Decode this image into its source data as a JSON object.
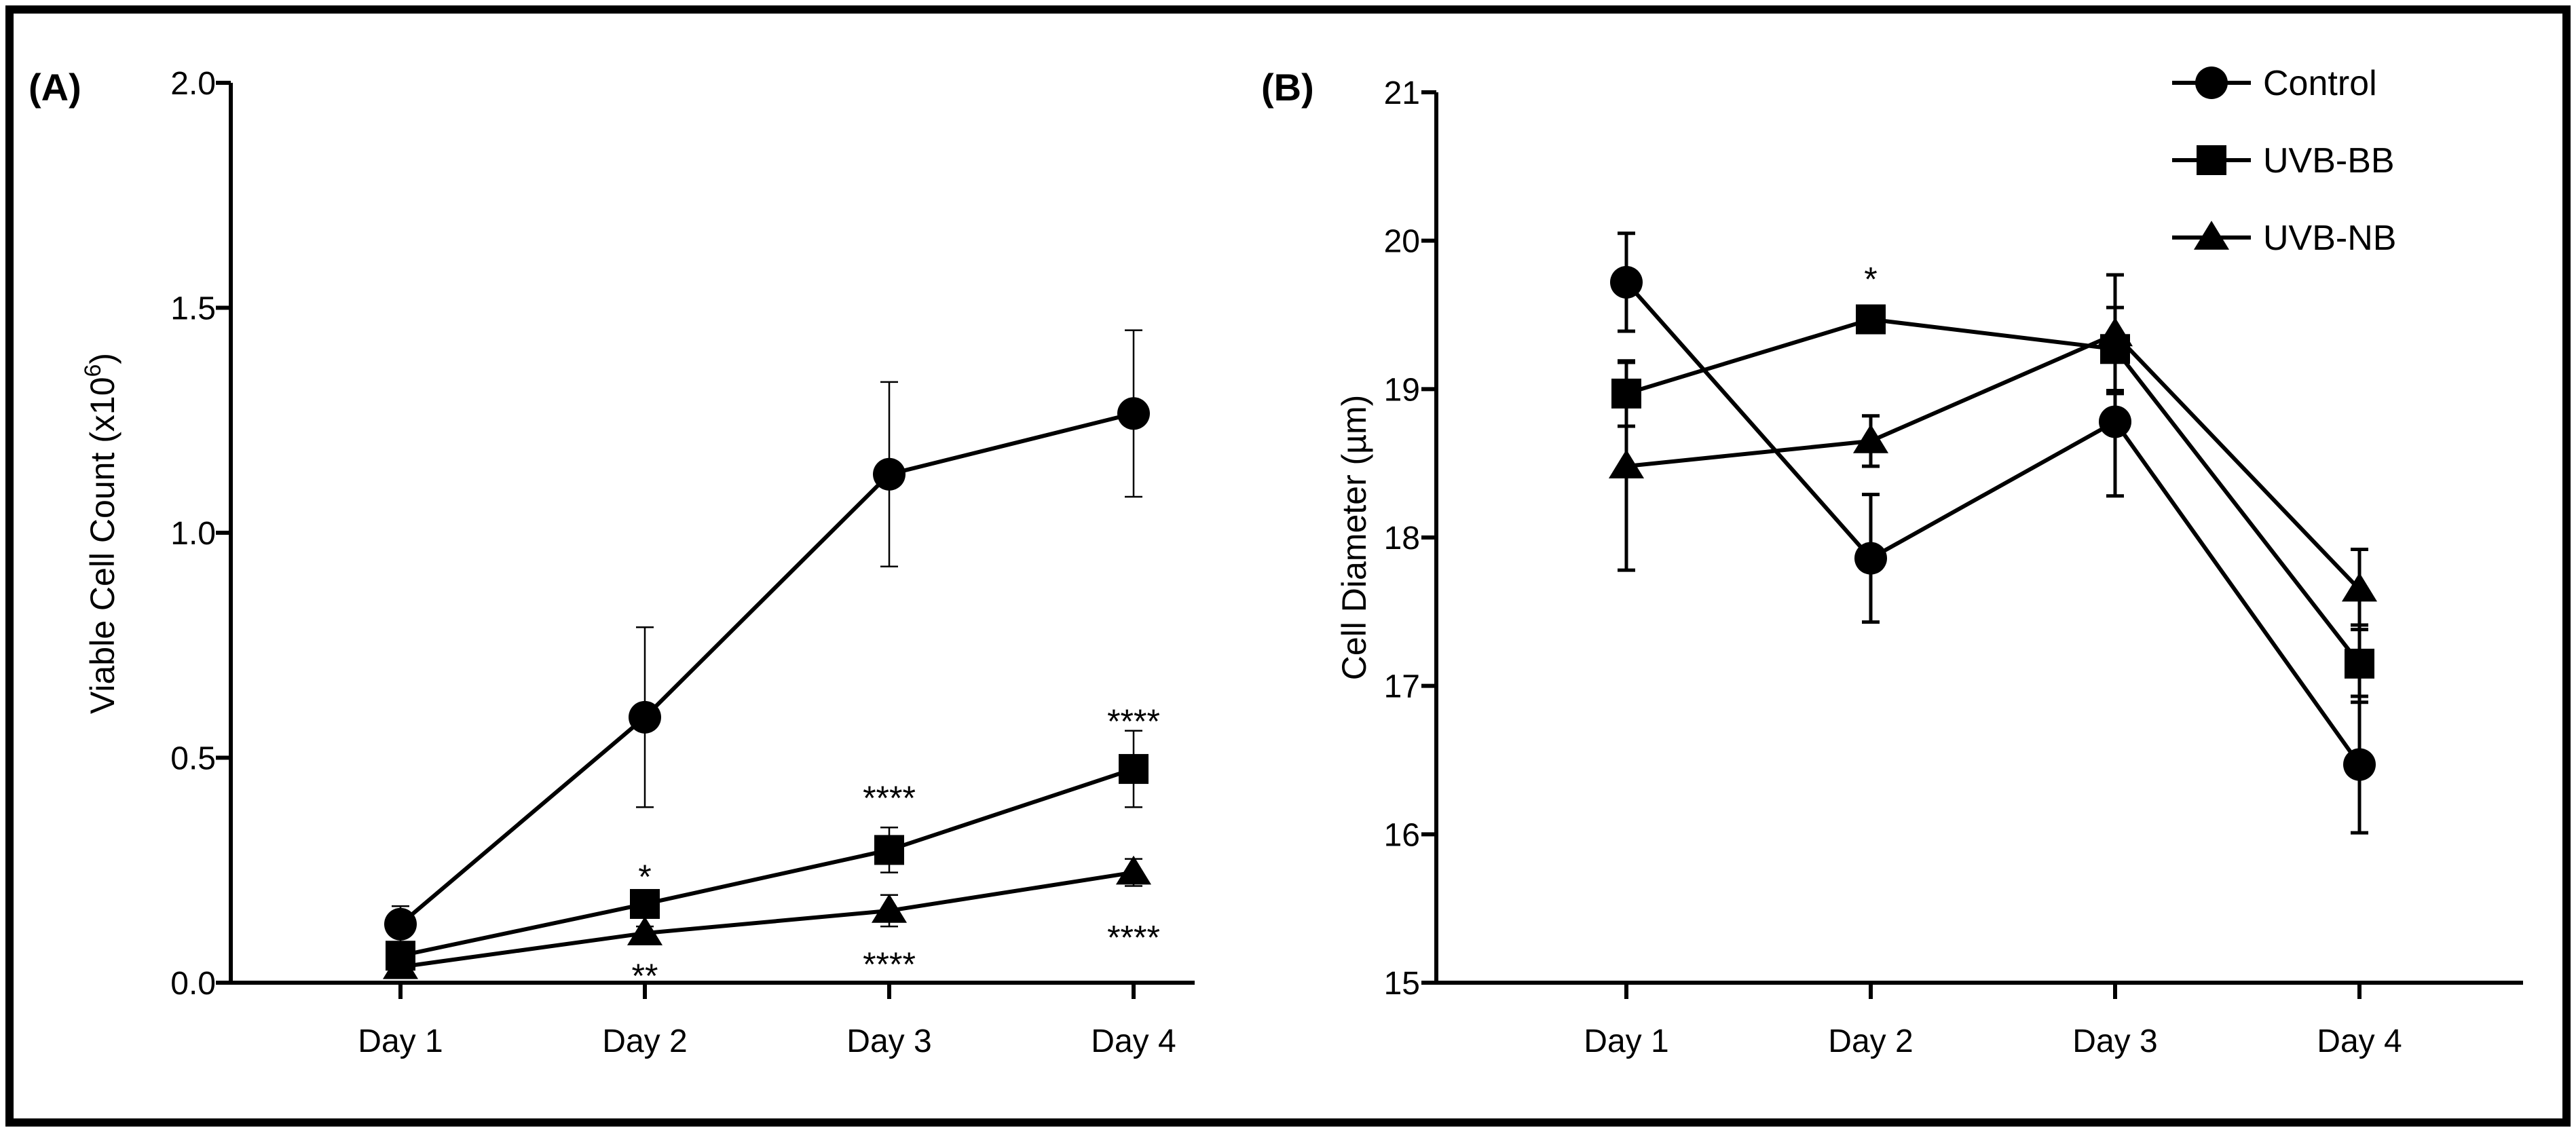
{
  "chart_data": [
    {
      "type": "line",
      "panel_label": "(A)",
      "title": "",
      "xlabel": "",
      "ylabel_main": "Viable Cell Count (x10",
      "ylabel_sup": "6",
      "ylabel_close": ")",
      "categories": [
        "Day 1",
        "Day 2",
        "Day 3",
        "Day 4"
      ],
      "ylim": [
        0,
        2.0
      ],
      "yticks": [
        0.0,
        0.5,
        1.0,
        1.5,
        2.0
      ],
      "ytick_labels": [
        "0.0",
        "0.5",
        "1.0",
        "1.5",
        "2.0"
      ],
      "grid": false,
      "series": [
        {
          "name": "Control",
          "marker": "circle",
          "values": [
            0.13,
            0.59,
            1.13,
            1.265
          ],
          "errors": [
            0.04,
            0.2,
            0.205,
            0.185
          ]
        },
        {
          "name": "UVB-BB",
          "marker": "square",
          "values": [
            0.06,
            0.175,
            0.295,
            0.475
          ],
          "errors": [
            0.02,
            0.03,
            0.05,
            0.085
          ]
        },
        {
          "name": "UVB-NB",
          "marker": "triangle",
          "values": [
            0.035,
            0.11,
            0.16,
            0.245
          ],
          "errors": [
            0.01,
            0.015,
            0.035,
            0.03
          ]
        }
      ],
      "annotations": [
        {
          "text": "*",
          "category": "Day 2",
          "y": 0.255
        },
        {
          "text": "**",
          "category": "Day 2",
          "y": 0.035
        },
        {
          "text": "****",
          "category": "Day 3",
          "y": 0.43
        },
        {
          "text": "****",
          "category": "Day 3",
          "y": 0.06
        },
        {
          "text": "****",
          "category": "Day 4",
          "y": 0.6
        },
        {
          "text": "****",
          "category": "Day 4",
          "y": 0.12
        }
      ]
    },
    {
      "type": "line",
      "panel_label": "(B)",
      "title": "",
      "xlabel": "",
      "ylabel": "Cell Diameter (µm)",
      "categories": [
        "Day 1",
        "Day 2",
        "Day 3",
        "Day 4"
      ],
      "ylim": [
        15,
        21
      ],
      "yticks": [
        15,
        16,
        17,
        18,
        19,
        20,
        21
      ],
      "ytick_labels": [
        "15",
        "16",
        "17",
        "18",
        "19",
        "20",
        "21"
      ],
      "grid": false,
      "legend_position": "top-right",
      "series": [
        {
          "name": "Control",
          "marker": "circle",
          "values": [
            19.72,
            17.86,
            18.78,
            16.47
          ],
          "errors": [
            0.33,
            0.43,
            0.5,
            0.46
          ]
        },
        {
          "name": "UVB-BB",
          "marker": "square",
          "values": [
            18.97,
            19.47,
            19.27,
            17.15
          ],
          "errors": [
            0.22,
            0.06,
            0.28,
            0.26
          ]
        },
        {
          "name": "UVB-NB",
          "marker": "triangle",
          "values": [
            18.48,
            18.65,
            19.37,
            17.65
          ],
          "errors": [
            0.7,
            0.17,
            0.4,
            0.27
          ]
        }
      ],
      "annotations": [
        {
          "text": "*",
          "category": "Day 2",
          "y": 19.8
        }
      ]
    }
  ],
  "legend": {
    "items": [
      {
        "label": "Control",
        "marker": "circle"
      },
      {
        "label": "UVB-BB",
        "marker": "square"
      },
      {
        "label": "UVB-NB",
        "marker": "triangle"
      }
    ]
  },
  "colors": {
    "ink": "#000000",
    "background": "#ffffff"
  }
}
